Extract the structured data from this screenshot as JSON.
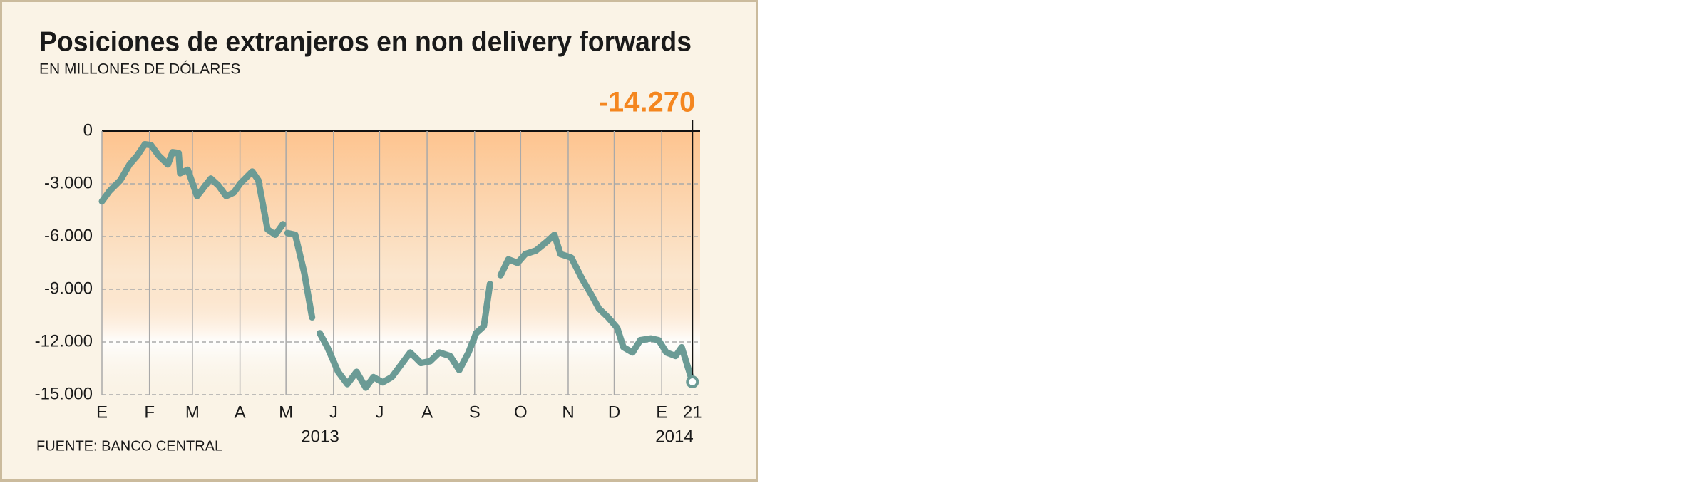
{
  "chart_data": {
    "type": "line",
    "title": "Posiciones de extranjeros en non delivery forwards",
    "subtitle": "EN MILLONES DE DÓLARES",
    "source": "FUENTE: BANCO CENTRAL",
    "year_labels": [
      "2013",
      "2014"
    ],
    "x": [
      0,
      5,
      12,
      18,
      23,
      28,
      32,
      37,
      43,
      46,
      50,
      51,
      56,
      62,
      71,
      76,
      81,
      86,
      90,
      98,
      102,
      108,
      113,
      118,
      120,
      121,
      126,
      132,
      137,
      140,
      142,
      147,
      154,
      160,
      166,
      172,
      177,
      183,
      189,
      195,
      201,
      208,
      214,
      220,
      227,
      233,
      239,
      244,
      249,
      253,
      257,
      260,
      265,
      271,
      276,
      283,
      290,
      295,
      299,
      306,
      313,
      319,
      324,
      330,
      336,
      340,
      346,
      351,
      358,
      363,
      368,
      374,
      378,
      385
    ],
    "series": [
      {
        "name": "Posiciones",
        "color": "#6b9b95",
        "values": [
          -4000,
          -3400,
          -2800,
          -1900,
          -1400,
          -750,
          -800,
          -1400,
          -1900,
          -1200,
          -1250,
          -2400,
          -2200,
          -3700,
          -2700,
          -3100,
          -3700,
          -3500,
          -3000,
          -2300,
          -2800,
          -5600,
          -5900,
          -5300,
          null,
          -5800,
          -5900,
          -8100,
          -10600,
          null,
          -11500,
          -12300,
          -13700,
          -14400,
          -13700,
          -14600,
          -14000,
          -14300,
          -14000,
          -13300,
          -12600,
          -13200,
          -13100,
          -12600,
          -12800,
          -13600,
          -12600,
          -11500,
          -11100,
          -8700,
          null,
          -8200,
          -7300,
          -7500,
          -7000,
          -6800,
          -6300,
          -5900,
          -7000,
          -7200,
          -8400,
          -9300,
          -10100,
          -10600,
          -11200,
          -12300,
          -12600,
          -11900,
          -11800,
          -11900,
          -12600,
          -12800,
          -12300,
          -14270
        ],
        "value_labels": [
          null,
          null,
          null,
          null,
          null,
          null,
          null,
          null,
          null,
          null,
          null,
          null,
          null,
          null,
          null,
          null,
          null,
          null,
          null,
          null,
          null,
          null,
          null,
          null,
          null,
          null,
          null,
          null,
          null,
          null,
          null,
          null,
          null,
          null,
          null,
          null,
          null,
          null,
          null,
          null,
          null,
          null,
          null,
          null,
          null,
          null,
          null,
          null,
          null,
          null,
          null,
          null,
          null,
          null,
          null,
          null,
          null,
          null,
          null,
          null,
          null,
          null,
          null,
          null,
          null,
          null,
          null,
          null,
          null,
          null,
          null,
          null,
          null,
          "-14.270"
        ]
      }
    ],
    "xlim": [
      0,
      390
    ],
    "xticks": [
      {
        "value": 0,
        "label": "E"
      },
      {
        "value": 31,
        "label": "F"
      },
      {
        "value": 59,
        "label": "M"
      },
      {
        "value": 90,
        "label": "A"
      },
      {
        "value": 120,
        "label": "M"
      },
      {
        "value": 151,
        "label": "J"
      },
      {
        "value": 181,
        "label": "J"
      },
      {
        "value": 212,
        "label": "A"
      },
      {
        "value": 243,
        "label": "S"
      },
      {
        "value": 273,
        "label": "O"
      },
      {
        "value": 304,
        "label": "N"
      },
      {
        "value": 334,
        "label": "D"
      },
      {
        "value": 365,
        "label": "E"
      },
      {
        "value": 385,
        "label": "21"
      }
    ],
    "ylim": [
      -15000,
      0
    ],
    "yticks": [
      0,
      {
        "value": -3000,
        "label": "-3.000"
      },
      {
        "value": -6000,
        "label": "-6.000"
      },
      {
        "value": -9000,
        "label": "-9.000"
      },
      {
        "value": -12000,
        "label": "-12.000"
      },
      {
        "value": -15000,
        "label": "-15.000"
      }
    ],
    "grid": true,
    "area_color": "#fdc48f",
    "label_color": "#f4861f"
  }
}
